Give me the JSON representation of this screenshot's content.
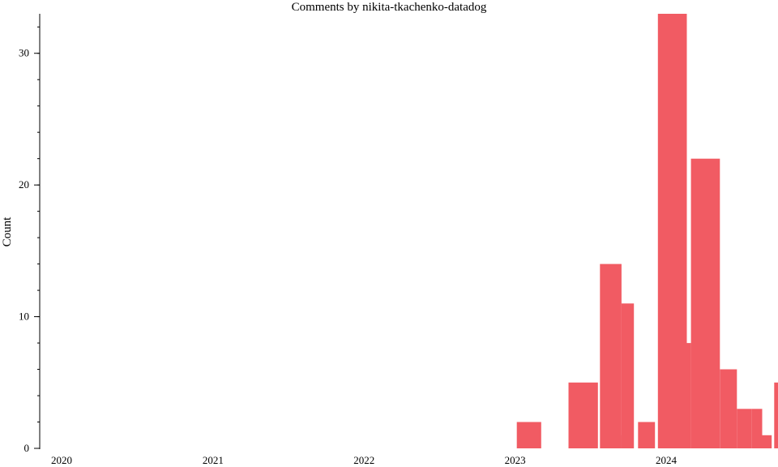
{
  "chart_data": {
    "type": "bar",
    "title": "Comments by nikita-tkachenko-datadog",
    "xlabel": "",
    "ylabel": "Count",
    "ylim": [
      0,
      33
    ],
    "y_ticks": [
      0,
      10,
      20,
      30
    ],
    "x_ticks": [
      "2020",
      "2021",
      "2022",
      "2023",
      "2024"
    ],
    "xlim": [
      "2019-11-15",
      "2024-09-15"
    ],
    "grid": false,
    "color": "#f15b63",
    "bars": [
      {
        "start": "2023-01-05",
        "end": "2023-03-05",
        "value": 2
      },
      {
        "start": "2023-05-10",
        "end": "2023-07-20",
        "value": 5
      },
      {
        "start": "2023-07-25",
        "end": "2023-09-15",
        "value": 14
      },
      {
        "start": "2023-08-15",
        "end": "2023-09-15",
        "value": 1
      },
      {
        "start": "2023-09-15",
        "end": "2023-10-15",
        "value": 11
      },
      {
        "start": "2023-10-25",
        "end": "2023-12-05",
        "value": 2
      },
      {
        "start": "2023-12-12",
        "end": "2024-02-20",
        "value": 33
      },
      {
        "start": "2024-02-20",
        "end": "2024-03-01",
        "value": 8
      },
      {
        "start": "2024-03-01",
        "end": "2024-05-10",
        "value": 22
      },
      {
        "start": "2024-05-10",
        "end": "2024-06-20",
        "value": 6
      },
      {
        "start": "2024-06-20",
        "end": "2024-07-25",
        "value": 3
      },
      {
        "start": "2024-07-25",
        "end": "2024-08-20",
        "value": 3
      },
      {
        "start": "2024-08-20",
        "end": "2024-09-12",
        "value": 1
      },
      {
        "start": "2024-09-18",
        "end": "2024-11-30",
        "value": 5
      }
    ]
  }
}
